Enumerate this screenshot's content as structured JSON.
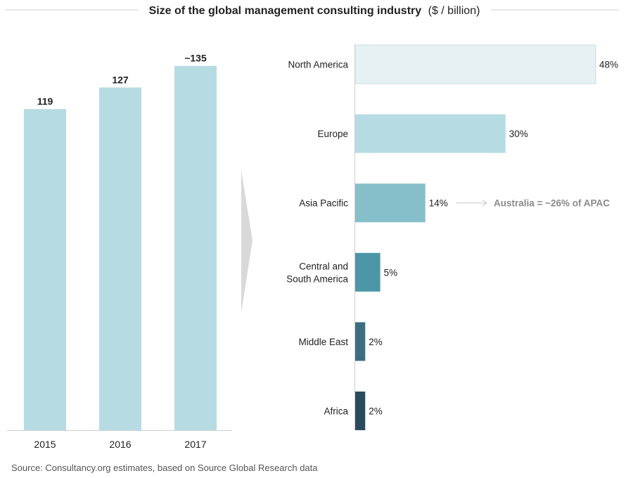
{
  "title": {
    "main": "Size of the global management consulting industry",
    "unit": "($ / billion)"
  },
  "source": "Source: Consultancy.org estimates, based on Source Global Research data",
  "colors": {
    "left_bar": "#b7dbe3",
    "arrow": "#d9d9d9",
    "rule": "#d0d0d0",
    "text": "#222222",
    "note": "#8a8a8a",
    "regions": [
      "#e7f1f3",
      "#b7dbe3",
      "#86bfca",
      "#4b97a8",
      "#3d6e80",
      "#2c4a5e"
    ]
  },
  "chart_data": [
    {
      "type": "bar",
      "title": "Size of the global management consulting industry ($ / billion)",
      "categories": [
        "2015",
        "2016",
        "2017"
      ],
      "values": [
        119,
        127,
        135
      ],
      "value_labels": [
        "119",
        "127",
        "~135"
      ],
      "ylim": [
        0,
        143
      ],
      "xlabel": "",
      "ylabel": ""
    },
    {
      "type": "bar",
      "orientation": "horizontal",
      "categories": [
        "North America",
        "Europe",
        "Asia Pacific",
        "Central and South America",
        "Middle East",
        "Africa"
      ],
      "category_lines": [
        [
          "North America"
        ],
        [
          "Europe"
        ],
        [
          "Asia Pacific"
        ],
        [
          "Central and",
          "South America"
        ],
        [
          "Middle East"
        ],
        [
          "Africa"
        ]
      ],
      "values": [
        48,
        30,
        14,
        5,
        2,
        2
      ],
      "value_labels": [
        "48%",
        "30%",
        "14%",
        "5%",
        "2%",
        "2%"
      ],
      "xlim": [
        0,
        48
      ],
      "annotation": {
        "category": "Asia Pacific",
        "text": "Australia = ~26% of APAC"
      }
    }
  ]
}
